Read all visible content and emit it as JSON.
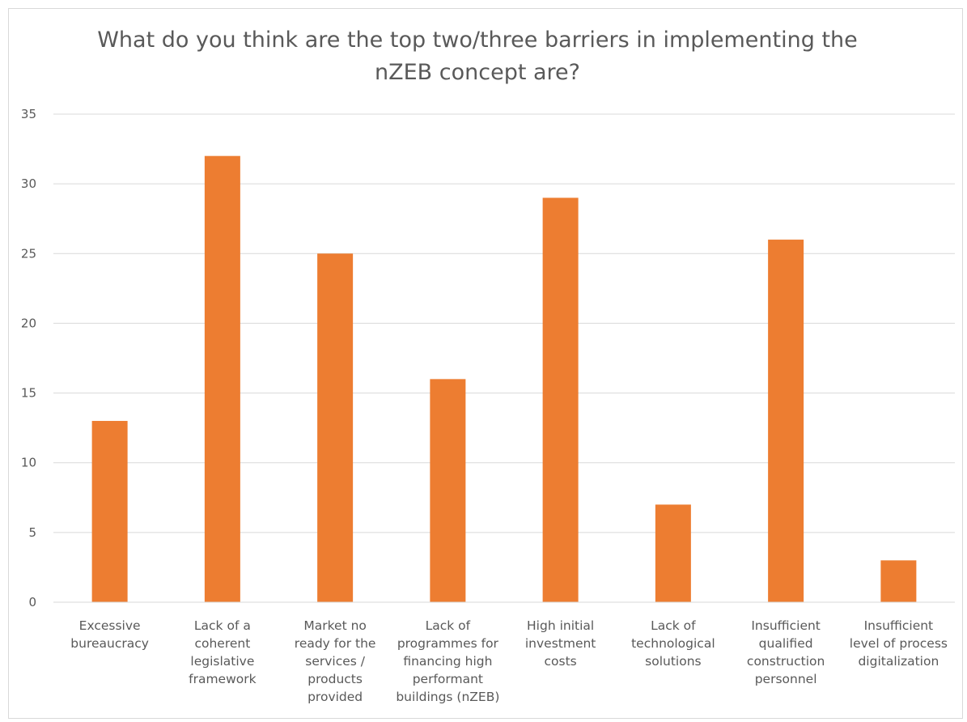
{
  "chart_data": {
    "type": "bar",
    "title_lines": [
      "What do you think are the top two/three barriers in implementing the",
      "nZEB concept are?"
    ],
    "categories": [
      [
        "Excessive",
        "bureaucracy"
      ],
      [
        "Lack of a",
        "coherent",
        "legislative",
        "framework"
      ],
      [
        "Market no",
        "ready for the",
        "services /",
        "products",
        "provided"
      ],
      [
        "Lack of",
        "programmes for",
        "financing high",
        "performant",
        "buildings (nZEB)"
      ],
      [
        "High initial",
        "investment",
        "costs"
      ],
      [
        "Lack of",
        "technological",
        "solutions"
      ],
      [
        "Insufficient",
        "qualified",
        "construction",
        "personnel"
      ],
      [
        "Insufficient",
        "level of process",
        "digitalization"
      ]
    ],
    "values": [
      13,
      32,
      25,
      16,
      29,
      7,
      26,
      3
    ],
    "ylim": [
      0,
      35
    ],
    "yticks": [
      0,
      5,
      10,
      15,
      20,
      25,
      30,
      35
    ],
    "grid": true,
    "legend": "none",
    "bar_color": "#ed7d31",
    "grid_color": "#d9d9d9",
    "text_color": "#595959"
  }
}
